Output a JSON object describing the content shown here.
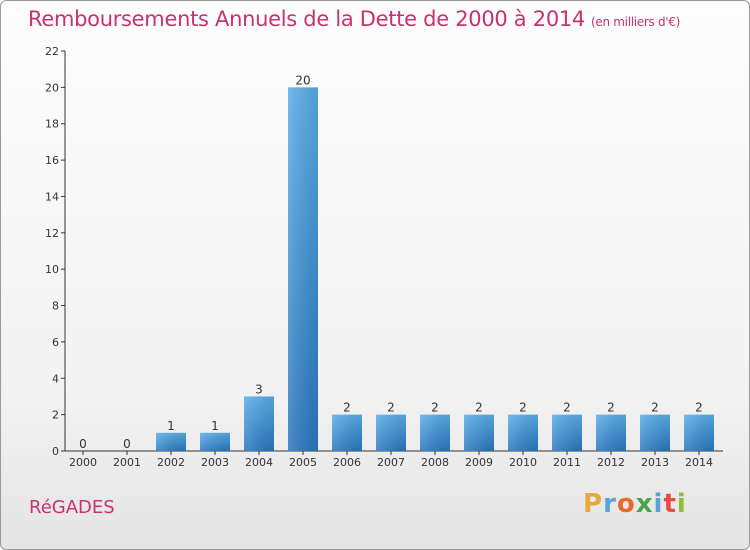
{
  "chart_data": {
    "type": "bar",
    "title": "Remboursements Annuels de la Dette de 2000 à 2014",
    "subtitle": "(en milliers d'€)",
    "categories": [
      "2000",
      "2001",
      "2002",
      "2003",
      "2004",
      "2005",
      "2006",
      "2007",
      "2008",
      "2009",
      "2010",
      "2011",
      "2012",
      "2013",
      "2014"
    ],
    "values": [
      0,
      0,
      1,
      1,
      3,
      20,
      2,
      2,
      2,
      2,
      2,
      2,
      2,
      2,
      2
    ],
    "ylim": [
      0,
      22
    ],
    "yticks": [
      0,
      2,
      4,
      6,
      8,
      10,
      12,
      14,
      16,
      18,
      20,
      22
    ],
    "xlabel": "",
    "ylabel": "",
    "grid": false,
    "bar_color": "#3a8fd6"
  },
  "commune": "RéGADES",
  "logo": {
    "letters": [
      "P",
      "r",
      "o",
      "x",
      "i",
      "t",
      "i"
    ],
    "colors": [
      "#e8a83a",
      "#5aa3d9",
      "#e86a2a",
      "#4aa44a",
      "#5aa3d9",
      "#e84a4a",
      "#8ac03a"
    ]
  }
}
